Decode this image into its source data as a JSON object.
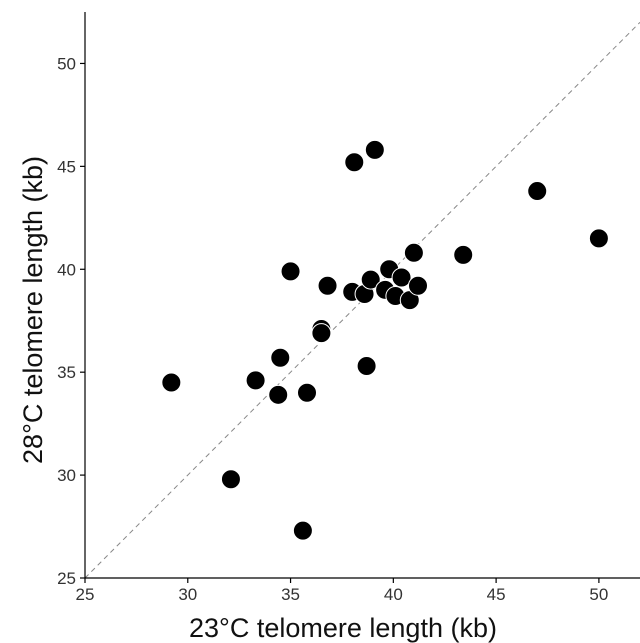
{
  "chart_data": {
    "type": "scatter",
    "xlabel": "23°C telomere length (kb)",
    "ylabel": "28°C telomere length (kb)",
    "xlim": [
      25,
      52
    ],
    "ylim": [
      25,
      52.5
    ],
    "xticks": [
      25,
      30,
      35,
      40,
      45,
      50
    ],
    "yticks": [
      25,
      30,
      35,
      40,
      45,
      50
    ],
    "xtick_labels": [
      "25",
      "30",
      "35",
      "40",
      "45",
      "50"
    ],
    "ytick_labels": [
      "25",
      "30",
      "35",
      "40",
      "45",
      "50"
    ],
    "reference_line": "y = x",
    "grid": false,
    "point_color": "#000000",
    "points": [
      {
        "x": 29.2,
        "y": 34.5
      },
      {
        "x": 32.1,
        "y": 29.8
      },
      {
        "x": 33.3,
        "y": 34.6
      },
      {
        "x": 34.4,
        "y": 33.9
      },
      {
        "x": 34.5,
        "y": 35.7
      },
      {
        "x": 35.0,
        "y": 39.9
      },
      {
        "x": 35.6,
        "y": 27.3
      },
      {
        "x": 35.8,
        "y": 34.0
      },
      {
        "x": 36.5,
        "y": 37.1
      },
      {
        "x": 36.5,
        "y": 36.9
      },
      {
        "x": 36.8,
        "y": 39.2
      },
      {
        "x": 38.0,
        "y": 38.9
      },
      {
        "x": 38.1,
        "y": 45.2
      },
      {
        "x": 38.6,
        "y": 38.8
      },
      {
        "x": 38.7,
        "y": 35.3
      },
      {
        "x": 38.9,
        "y": 39.5
      },
      {
        "x": 39.1,
        "y": 45.8
      },
      {
        "x": 39.6,
        "y": 39.0
      },
      {
        "x": 39.8,
        "y": 40.0
      },
      {
        "x": 40.1,
        "y": 38.7
      },
      {
        "x": 40.4,
        "y": 39.6
      },
      {
        "x": 40.8,
        "y": 38.5
      },
      {
        "x": 41.0,
        "y": 40.8
      },
      {
        "x": 41.2,
        "y": 39.2
      },
      {
        "x": 43.4,
        "y": 40.7
      },
      {
        "x": 47.0,
        "y": 43.8
      },
      {
        "x": 50.0,
        "y": 41.5
      }
    ]
  }
}
